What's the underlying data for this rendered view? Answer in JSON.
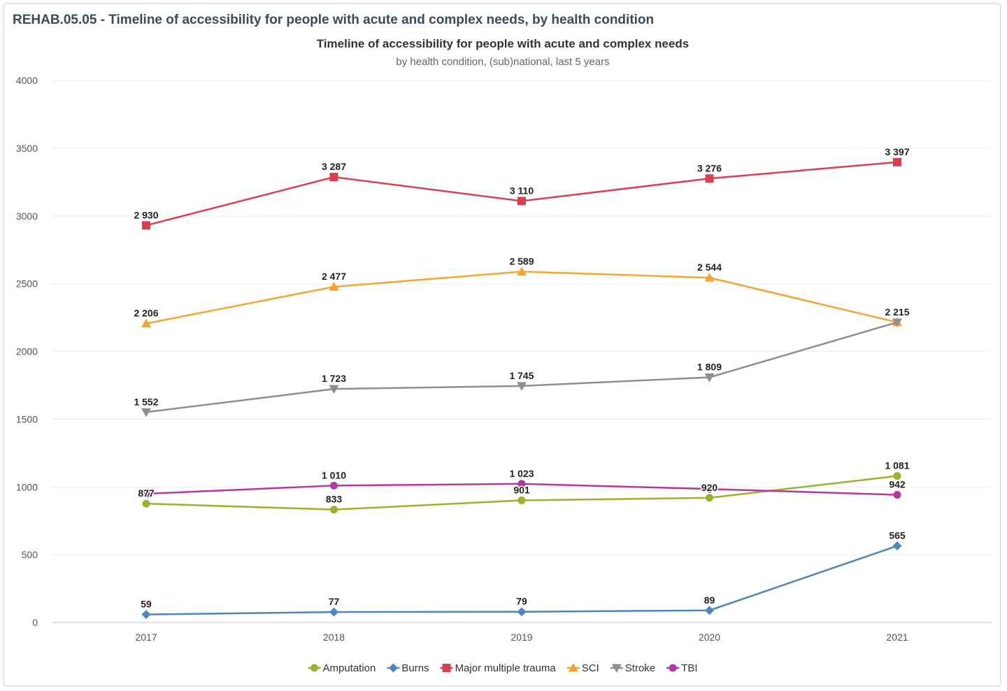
{
  "panel": {
    "title": "REHAB.05.05 - Timeline of accessibility for people with acute and complex needs, by health condition"
  },
  "chart_data": {
    "type": "line",
    "title": "Timeline of accessibility for people with acute and complex needs",
    "subtitle": "by health condition, (sub)national, last 5 years",
    "xlabel": "",
    "ylabel": "",
    "categories": [
      "2017",
      "2018",
      "2019",
      "2020",
      "2021"
    ],
    "ylim": [
      0,
      4000
    ],
    "yticks": [
      0,
      500,
      1000,
      1500,
      2000,
      2500,
      3000,
      3500,
      4000
    ],
    "grid": true,
    "legend_position": "bottom",
    "series": [
      {
        "name": "Amputation",
        "values": [
          877,
          833,
          901,
          920,
          1081
        ],
        "labels": [
          "877",
          "833",
          "901",
          "920",
          "1 081"
        ],
        "color": "#99b32e",
        "marker": "circle"
      },
      {
        "name": "Burns",
        "values": [
          59,
          77,
          79,
          89,
          565
        ],
        "labels": [
          "59",
          "77",
          "79",
          "89",
          "565"
        ],
        "color": "#4e86bd",
        "marker": "diamond"
      },
      {
        "name": "Major multiple trauma",
        "values": [
          2930,
          3287,
          3110,
          3276,
          3397
        ],
        "labels": [
          "2 930",
          "3 287",
          "3 110",
          "3 276",
          "3 397"
        ],
        "color": "#d9404f",
        "marker": "square"
      },
      {
        "name": "SCI",
        "values": [
          2206,
          2477,
          2589,
          2544,
          2215
        ],
        "labels": [
          "2 206",
          "2 477",
          "2 589",
          "2 544",
          "2 215"
        ],
        "color": "#f7a331",
        "marker": "triangle"
      },
      {
        "name": "Stroke",
        "values": [
          1552,
          1723,
          1745,
          1809,
          2215
        ],
        "labels": [
          "1 552",
          "1 723",
          "1 745",
          "1 809",
          ""
        ],
        "color": "#938c8c",
        "marker": "triangle-down"
      },
      {
        "name": "TBI",
        "values": [
          950,
          1010,
          1023,
          985,
          942
        ],
        "labels": [
          "",
          "1 010",
          "1 023",
          "",
          "942"
        ],
        "color": "#b6379f",
        "marker": "circle"
      }
    ]
  }
}
